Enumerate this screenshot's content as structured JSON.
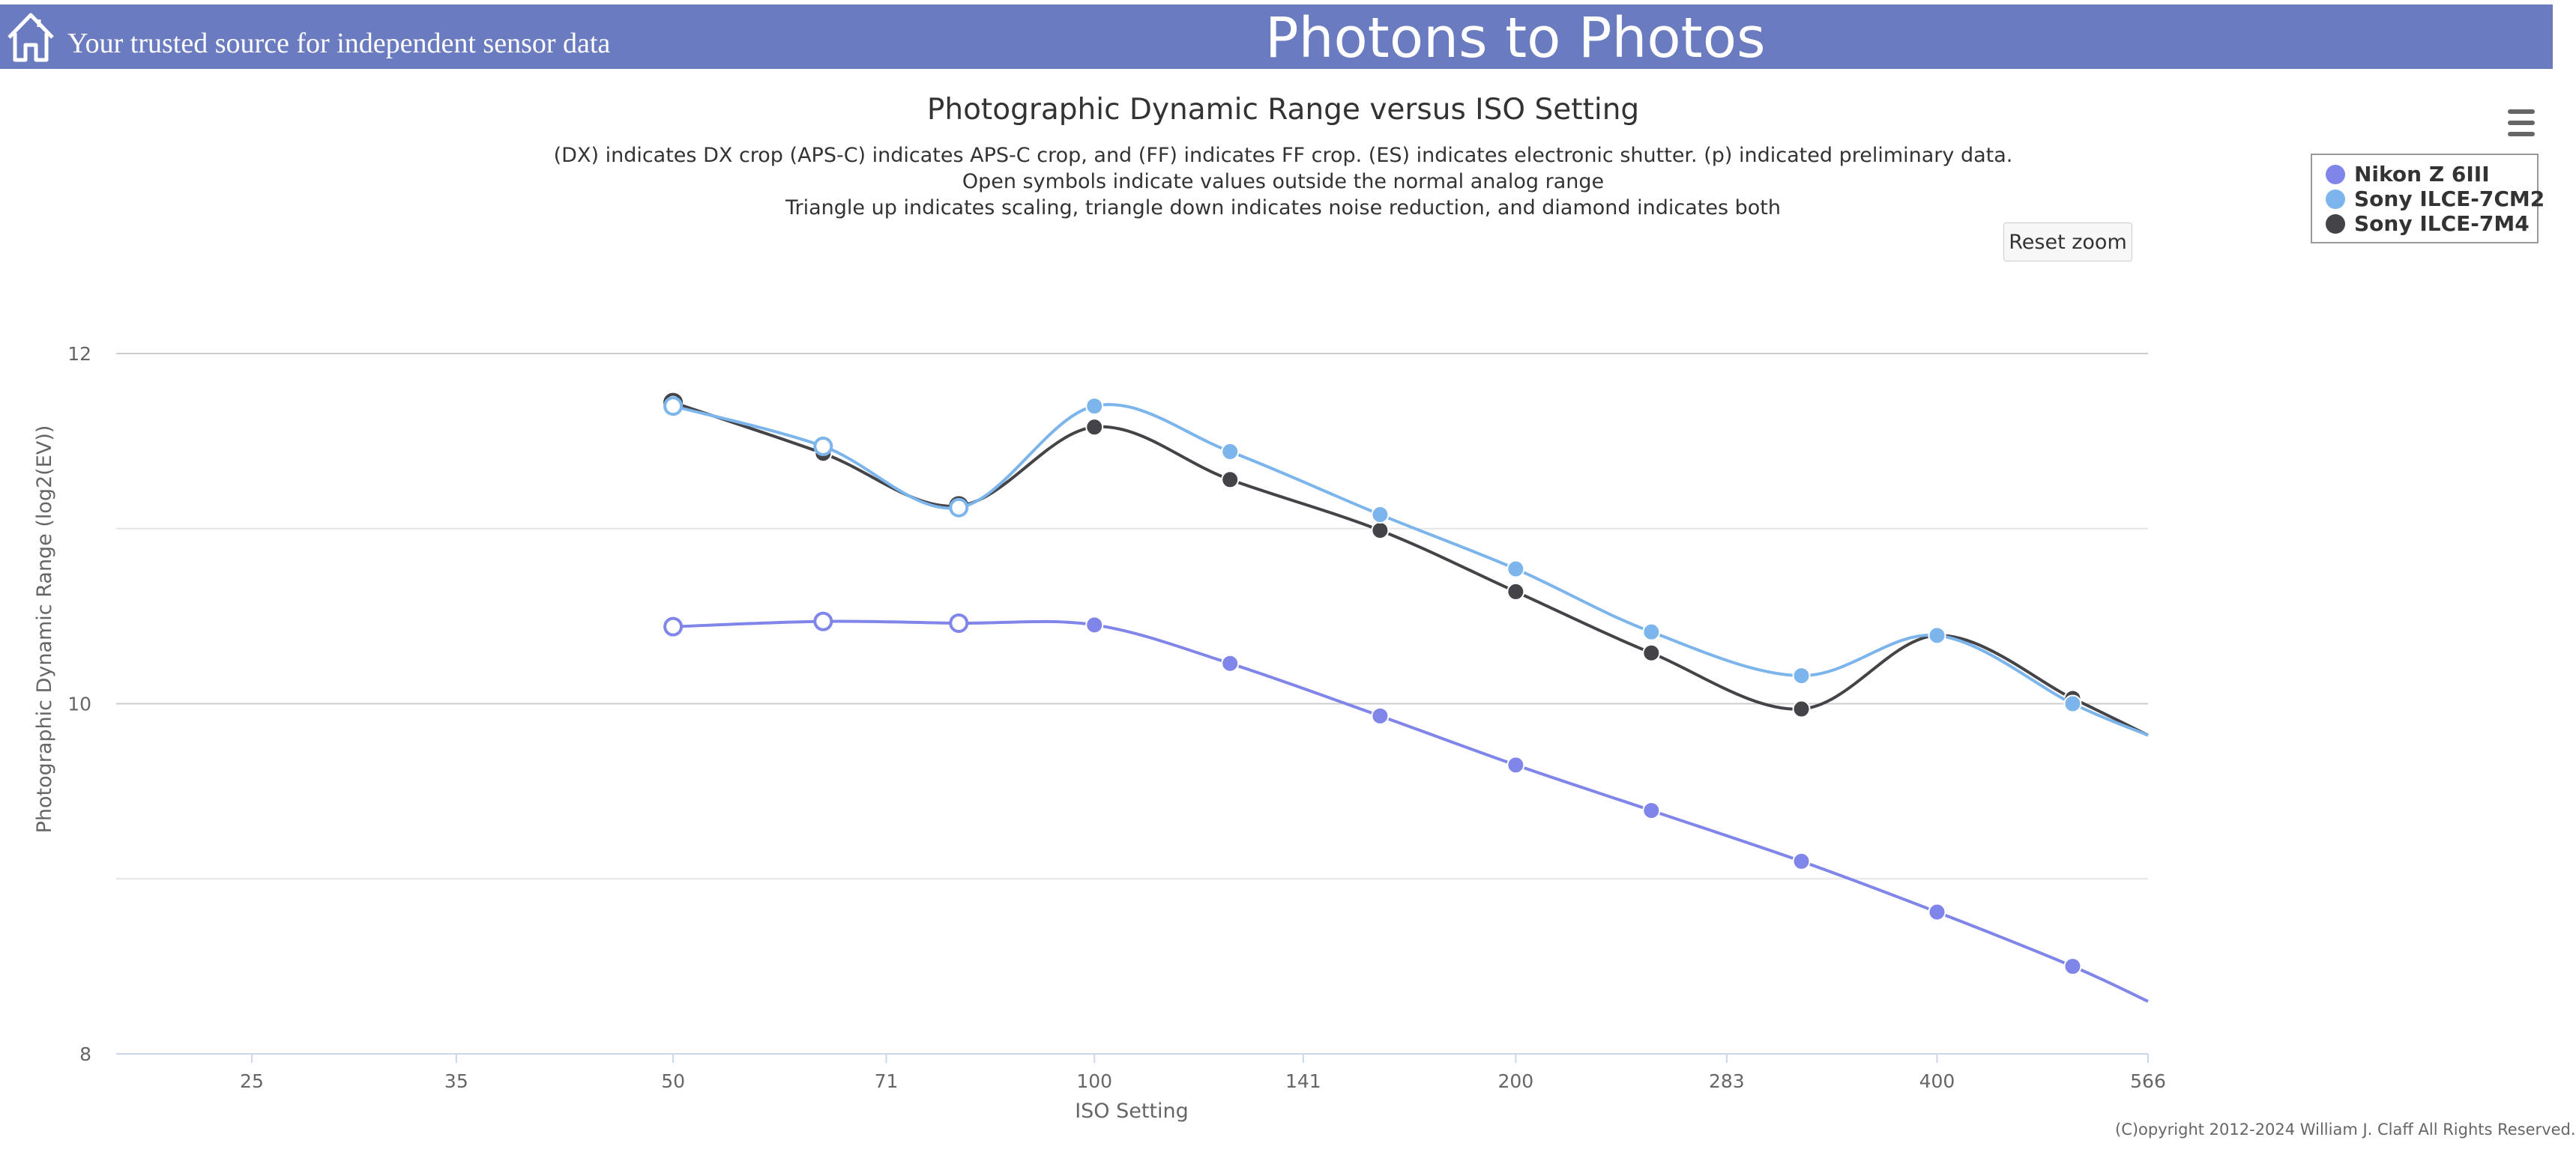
{
  "header": {
    "tagline": "Your trusted source for independent sensor data",
    "site_title": "Photons to Photos",
    "background_color": "#6b7bc0",
    "home_icon": "home-icon"
  },
  "reset_zoom_label": "Reset zoom",
  "menu_icon": "hamburger-menu-icon",
  "copyright": "(C)opyright 2012-2024 William J. Claff All Rights Reserved.",
  "chart_data": {
    "type": "line",
    "title": "Photographic Dynamic Range versus ISO Setting",
    "subtitles": [
      "(DX) indicates DX crop (APS-C) indicates APS-C crop, and (FF) indicates FF crop. (ES) indicates electronic shutter. (p) indicated preliminary data.",
      "Open symbols indicate values outside the normal analog range",
      "Triangle up indicates scaling, triangle down indicates noise reduction, and diamond indicates both"
    ],
    "xlabel": "ISO Setting",
    "ylabel": "Photographic Dynamic Range (log2(EV))",
    "x_scale": "log2",
    "xlim": [
      20,
      566
    ],
    "ylim": [
      8,
      12
    ],
    "x_ticks": [
      "25",
      "35",
      "50",
      "71",
      "100",
      "141",
      "200",
      "283",
      "400",
      "566"
    ],
    "y_ticks": [
      "8",
      "10",
      "12"
    ],
    "grid": true,
    "legend_position": "top-right",
    "series": [
      {
        "name": "Nikon Z 6III",
        "color": "#8085e9",
        "points": [
          {
            "x": 50,
            "y": 10.44,
            "open": true
          },
          {
            "x": 64,
            "y": 10.47,
            "open": true
          },
          {
            "x": 80,
            "y": 10.46,
            "open": true
          },
          {
            "x": 100,
            "y": 10.45,
            "open": false
          },
          {
            "x": 125,
            "y": 10.23,
            "open": false
          },
          {
            "x": 160,
            "y": 9.93,
            "open": false
          },
          {
            "x": 200,
            "y": 9.65,
            "open": false
          },
          {
            "x": 250,
            "y": 9.39,
            "open": false
          },
          {
            "x": 320,
            "y": 9.1,
            "open": false
          },
          {
            "x": 400,
            "y": 8.81,
            "open": false
          },
          {
            "x": 500,
            "y": 8.5,
            "open": false
          },
          {
            "x": 566,
            "y": 8.3,
            "open": false,
            "hidden": true
          }
        ]
      },
      {
        "name": "Sony ILCE-7CM2",
        "color": "#7cb5ec",
        "points": [
          {
            "x": 50,
            "y": 11.7,
            "open": true
          },
          {
            "x": 64,
            "y": 11.47,
            "open": true
          },
          {
            "x": 80,
            "y": 11.12,
            "open": true
          },
          {
            "x": 100,
            "y": 11.7,
            "open": false
          },
          {
            "x": 125,
            "y": 11.44,
            "open": false
          },
          {
            "x": 160,
            "y": 11.08,
            "open": false
          },
          {
            "x": 200,
            "y": 10.77,
            "open": false
          },
          {
            "x": 250,
            "y": 10.41,
            "open": false
          },
          {
            "x": 320,
            "y": 10.16,
            "open": false
          },
          {
            "x": 400,
            "y": 10.39,
            "open": false
          },
          {
            "x": 500,
            "y": 10.0,
            "open": false
          },
          {
            "x": 566,
            "y": 9.82,
            "open": false,
            "hidden": true
          }
        ]
      },
      {
        "name": "Sony ILCE-7M4",
        "color": "#434348",
        "points": [
          {
            "x": 50,
            "y": 11.72,
            "open": true
          },
          {
            "x": 64,
            "y": 11.43,
            "open": false
          },
          {
            "x": 80,
            "y": 11.13,
            "open": true
          },
          {
            "x": 100,
            "y": 11.58,
            "open": false
          },
          {
            "x": 125,
            "y": 11.28,
            "open": false
          },
          {
            "x": 160,
            "y": 10.99,
            "open": false
          },
          {
            "x": 200,
            "y": 10.64,
            "open": false
          },
          {
            "x": 250,
            "y": 10.29,
            "open": false
          },
          {
            "x": 320,
            "y": 9.97,
            "open": false
          },
          {
            "x": 400,
            "y": 10.39,
            "open": false
          },
          {
            "x": 500,
            "y": 10.03,
            "open": false
          },
          {
            "x": 566,
            "y": 9.82,
            "open": false,
            "hidden": true
          }
        ]
      }
    ]
  }
}
